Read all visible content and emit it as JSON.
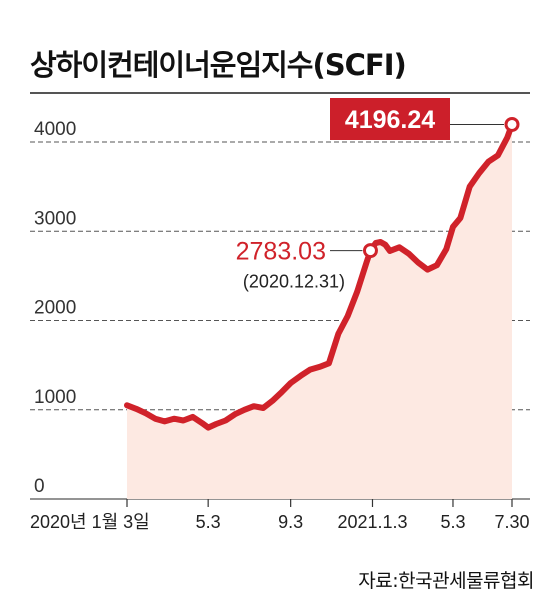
{
  "title": "상하이컨테이너운임지수(SCFI)",
  "source": "자료:한국관세물류협회",
  "colors": {
    "line": "#d0222a",
    "area": "#fde9e2",
    "label_box": "#cc1f2a",
    "grid": "#555555"
  },
  "chart_data": {
    "type": "area",
    "title": "상하이컨테이너운임지수(SCFI)",
    "xlabel": "",
    "ylabel": "",
    "ylim": [
      0,
      4300
    ],
    "yticks": [
      0,
      1000,
      2000,
      3000,
      4000
    ],
    "ytick_labels": [
      "0",
      "1000",
      "2000",
      "3000",
      "4000"
    ],
    "xticks": [
      {
        "x": "2020-01-03",
        "label": "2020년 1월 3일"
      },
      {
        "x": "2020-05-03",
        "label": "5.3"
      },
      {
        "x": "2020-09-03",
        "label": "9.3"
      },
      {
        "x": "2021-01-03",
        "label": "2021.1.3"
      },
      {
        "x": "2021-05-03",
        "label": "5.3"
      },
      {
        "x": "2021-07-30",
        "label": "7.30"
      }
    ],
    "series": [
      {
        "points": [
          [
            "2020-01-03",
            1050
          ],
          [
            "2020-01-17",
            1010
          ],
          [
            "2020-01-31",
            960
          ],
          [
            "2020-02-14",
            900
          ],
          [
            "2020-02-28",
            870
          ],
          [
            "2020-03-13",
            900
          ],
          [
            "2020-03-27",
            880
          ],
          [
            "2020-04-10",
            920
          ],
          [
            "2020-04-24",
            850
          ],
          [
            "2020-05-03",
            800
          ],
          [
            "2020-05-15",
            840
          ],
          [
            "2020-05-29",
            880
          ],
          [
            "2020-06-12",
            950
          ],
          [
            "2020-06-26",
            1000
          ],
          [
            "2020-07-10",
            1040
          ],
          [
            "2020-07-24",
            1020
          ],
          [
            "2020-08-07",
            1100
          ],
          [
            "2020-08-21",
            1200
          ],
          [
            "2020-09-03",
            1300
          ],
          [
            "2020-09-18",
            1380
          ],
          [
            "2020-10-02",
            1450
          ],
          [
            "2020-10-16",
            1480
          ],
          [
            "2020-10-30",
            1520
          ],
          [
            "2020-11-13",
            1850
          ],
          [
            "2020-11-27",
            2050
          ],
          [
            "2020-12-11",
            2320
          ],
          [
            "2020-12-25",
            2650
          ],
          [
            "2020-12-31",
            2783.03
          ],
          [
            "2021-01-08",
            2870
          ],
          [
            "2021-01-15",
            2880
          ],
          [
            "2021-01-22",
            2850
          ],
          [
            "2021-01-29",
            2780
          ],
          [
            "2021-02-12",
            2820
          ],
          [
            "2021-02-26",
            2750
          ],
          [
            "2021-03-12",
            2650
          ],
          [
            "2021-03-26",
            2570
          ],
          [
            "2021-04-09",
            2620
          ],
          [
            "2021-04-23",
            2800
          ],
          [
            "2021-05-03",
            3050
          ],
          [
            "2021-05-14",
            3150
          ],
          [
            "2021-05-28",
            3500
          ],
          [
            "2021-06-11",
            3650
          ],
          [
            "2021-06-25",
            3780
          ],
          [
            "2021-07-09",
            3850
          ],
          [
            "2021-07-23",
            4050
          ],
          [
            "2021-07-30",
            4196.24
          ]
        ]
      }
    ],
    "annotations": [
      {
        "x": "2020-12-31",
        "y": 2783.03,
        "label": "2783.03",
        "sublabel": "(2020.12.31)"
      },
      {
        "x": "2021-07-30",
        "y": 4196.24,
        "label": "4196.24"
      }
    ],
    "grid": "horizontal-dashed"
  }
}
